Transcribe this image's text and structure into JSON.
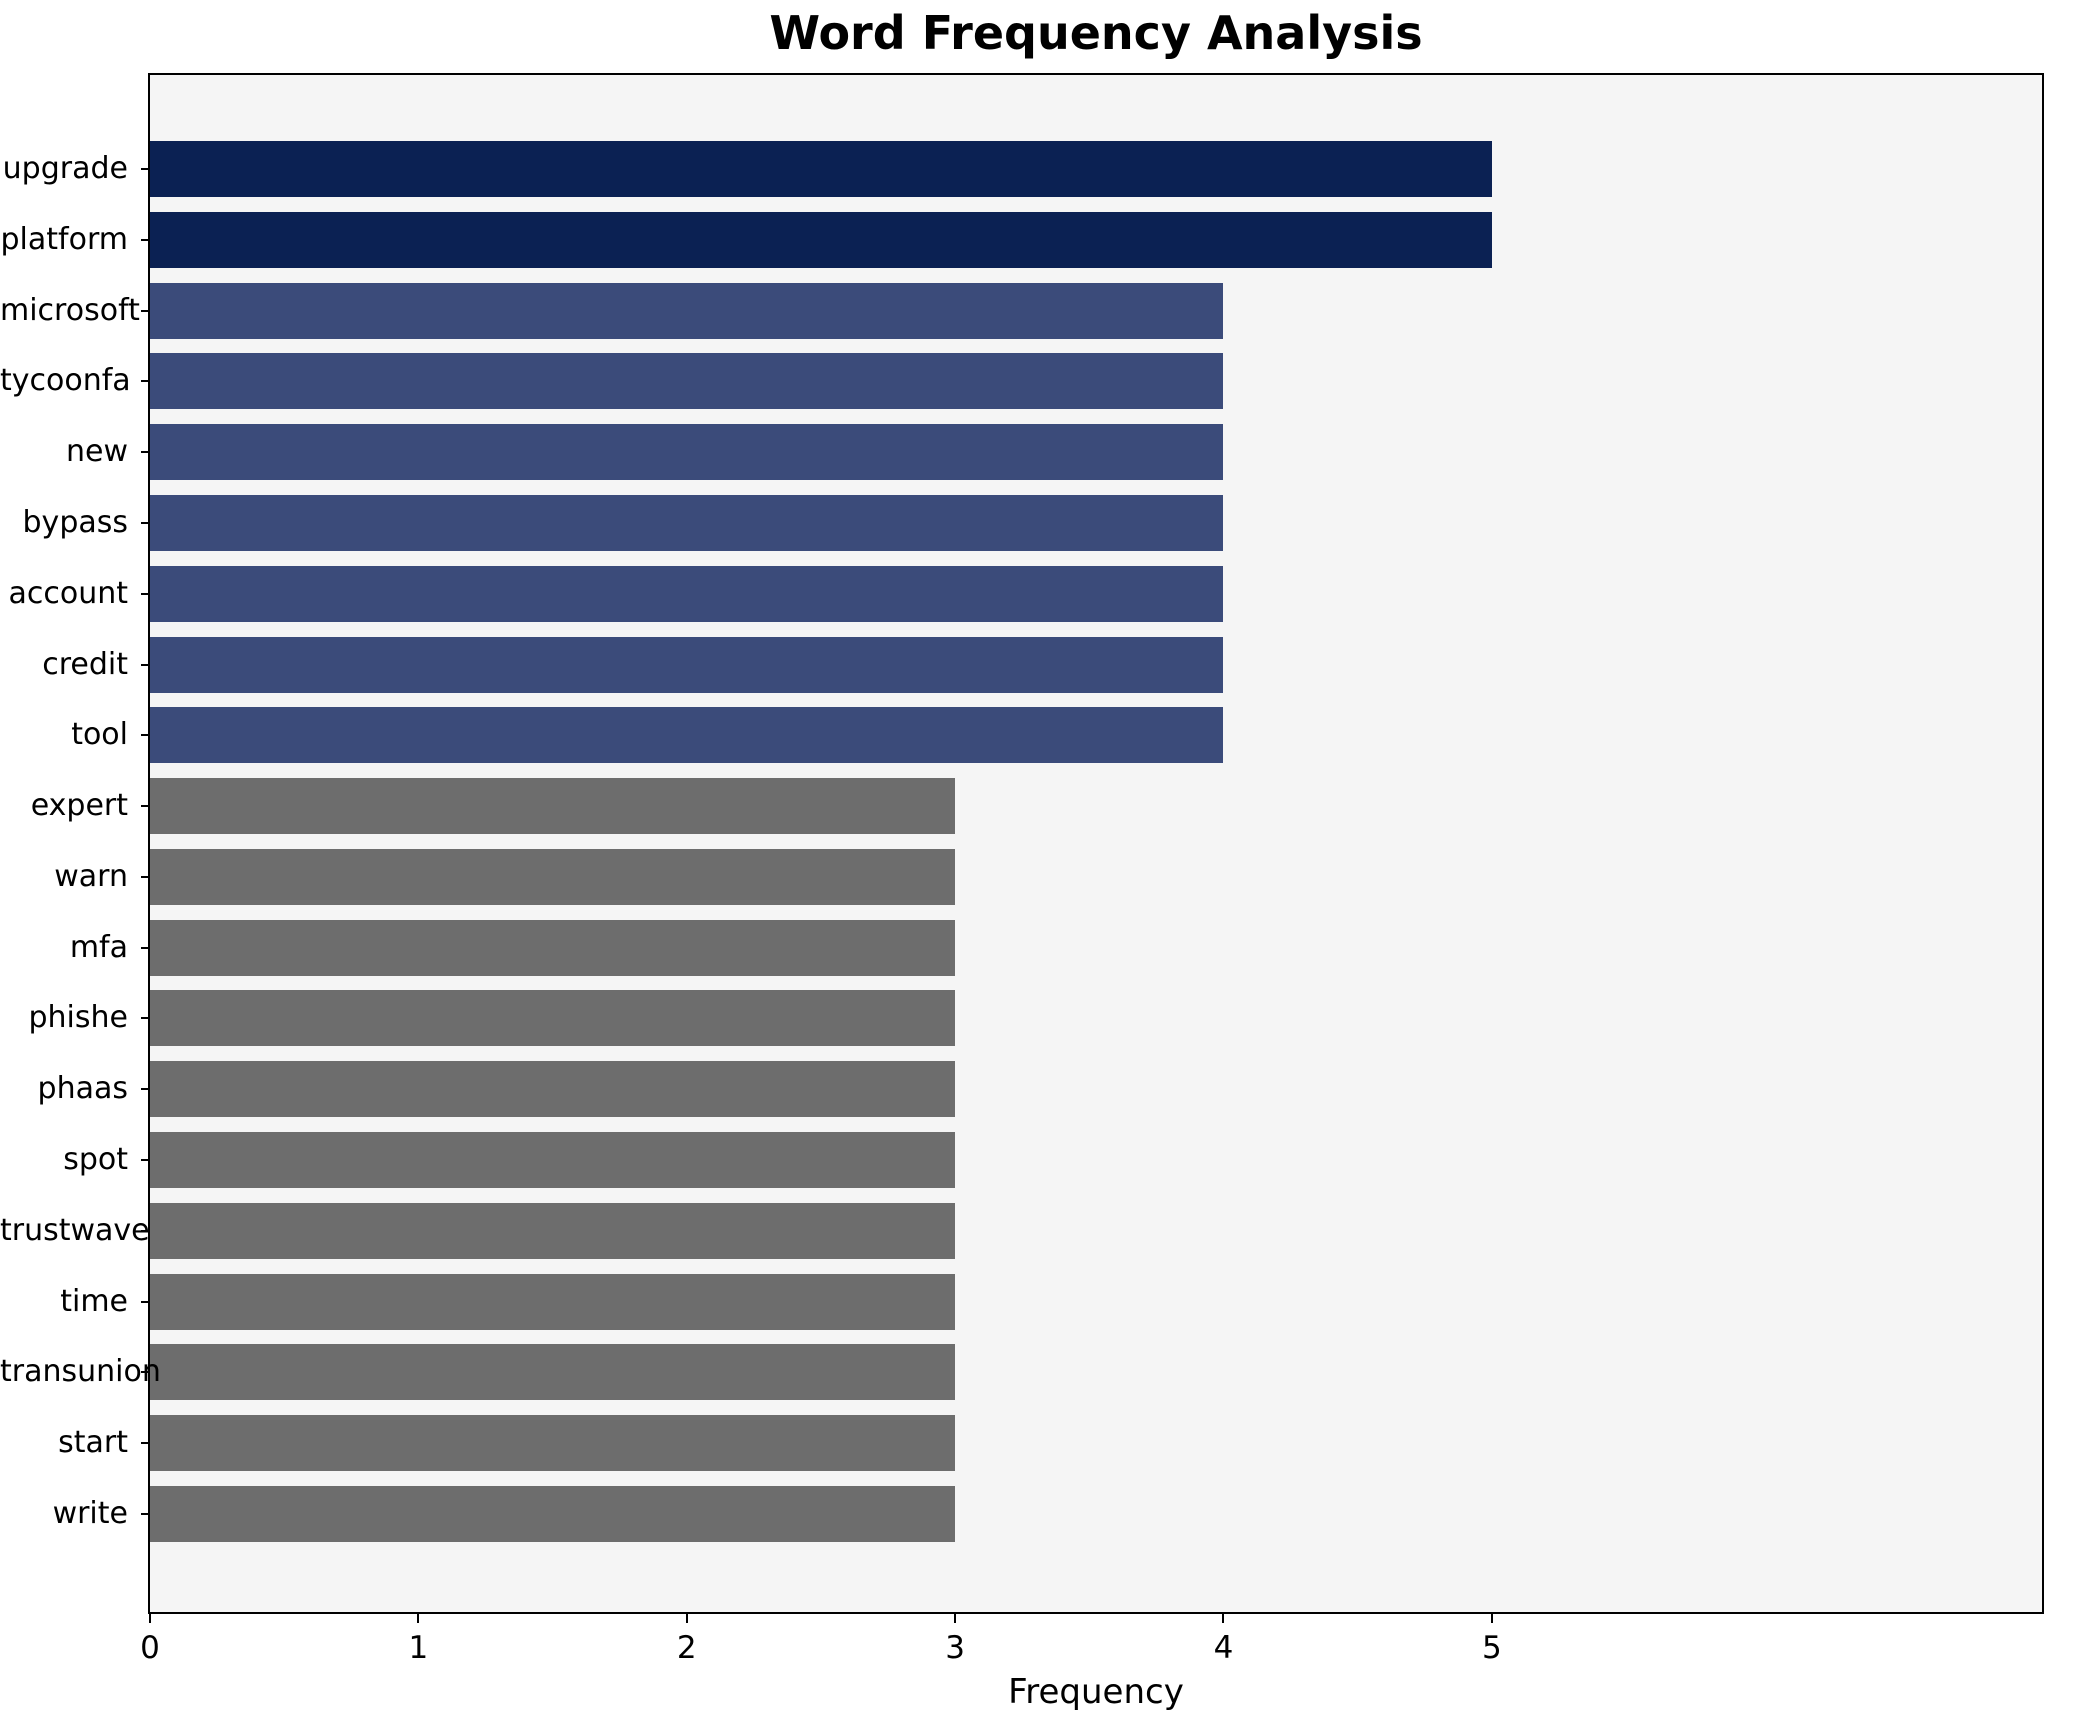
{
  "chart_data": {
    "type": "bar",
    "orientation": "horizontal",
    "title": "Word Frequency Analysis",
    "xlabel": "Frequency",
    "ylabel": "",
    "categories": [
      "upgrade",
      "platform",
      "microsoft",
      "tycoonfa",
      "new",
      "bypass",
      "account",
      "credit",
      "tool",
      "expert",
      "warn",
      "mfa",
      "phishe",
      "phaas",
      "spot",
      "trustwave",
      "time",
      "transunion",
      "start",
      "write"
    ],
    "values": [
      5,
      5,
      4,
      4,
      4,
      4,
      4,
      4,
      4,
      3,
      3,
      3,
      3,
      3,
      3,
      3,
      3,
      3,
      3,
      3
    ],
    "bar_colors": [
      "#0b2153",
      "#0b2153",
      "#3b4b7a",
      "#3b4b7a",
      "#3b4b7a",
      "#3b4b7a",
      "#3b4b7a",
      "#3b4b7a",
      "#3b4b7a",
      "#6d6d6d",
      "#6d6d6d",
      "#6d6d6d",
      "#6d6d6d",
      "#6d6d6d",
      "#6d6d6d",
      "#6d6d6d",
      "#6d6d6d",
      "#6d6d6d",
      "#6d6d6d",
      "#6d6d6d"
    ],
    "xlim": [
      0,
      7.05
    ],
    "xticks": [
      0,
      1,
      2,
      3,
      4,
      5
    ],
    "grid": "off",
    "legend": "none",
    "plot_background": "#f5f5f5",
    "figure_background": "#ffffff"
  }
}
